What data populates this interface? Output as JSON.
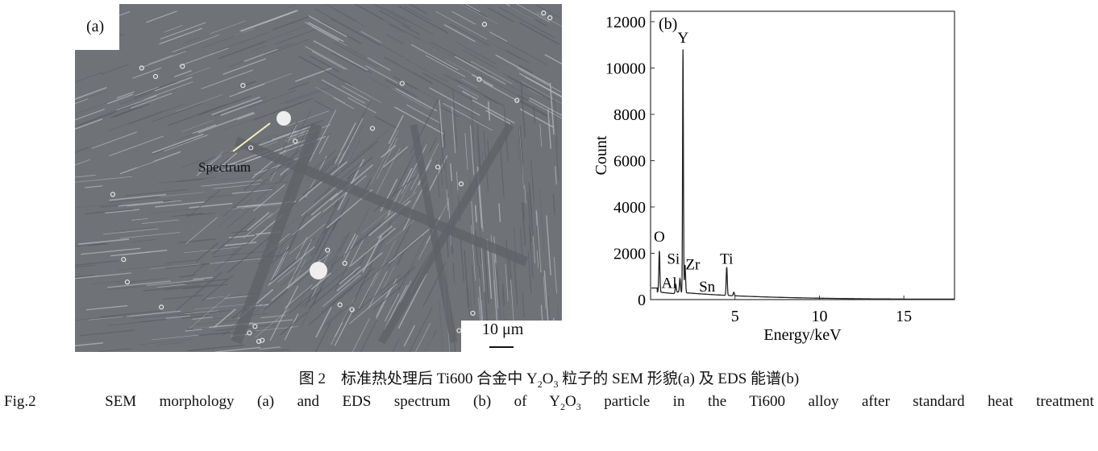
{
  "panel_a": {
    "label": "(a)",
    "annotation": "Spectrum",
    "scale_bar": "10 μm"
  },
  "chart_data": {
    "type": "line",
    "panel_label": "(b)",
    "xlabel": "Energy/keV",
    "ylabel": "Count",
    "xlim": [
      0,
      18
    ],
    "ylim": [
      0,
      12450
    ],
    "xticks": [
      5,
      10,
      15
    ],
    "yticks": [
      0,
      2000,
      4000,
      6000,
      8000,
      10000,
      12000
    ],
    "grid": false,
    "line_color": "#222222",
    "peaks": [
      {
        "element": "O",
        "energy": 0.52,
        "count": 2100
      },
      {
        "element": "Al",
        "energy": 1.49,
        "count": 650
      },
      {
        "element": "Si",
        "energy": 1.74,
        "count": 900
      },
      {
        "element": "Y",
        "energy": 1.92,
        "count": 10800
      },
      {
        "element": "Zr",
        "energy": 2.04,
        "count": 1500
      },
      {
        "element": "Sn",
        "energy": 3.44,
        "count": 200
      },
      {
        "element": "Ti",
        "energy": 4.51,
        "count": 1400
      },
      {
        "element": "",
        "energy": 4.93,
        "count": 320
      }
    ]
  },
  "caption": {
    "zh_prefix": "图 2　标准热处理后 Ti600 合金中 Y",
    "zh_sub1": "2",
    "zh_mid": "O",
    "zh_sub2": "3",
    "zh_suffix": " 粒子的 SEM 形貌(a) 及 EDS 能谱(b)",
    "en_fig": "Fig.2",
    "en_prefix": "SEM morphology (a) and EDS spectrum (b) of Y",
    "en_sub1": "2",
    "en_mid": "O",
    "en_sub2": "3",
    "en_suffix": " particle in the Ti600 alloy after standard heat treatment"
  }
}
